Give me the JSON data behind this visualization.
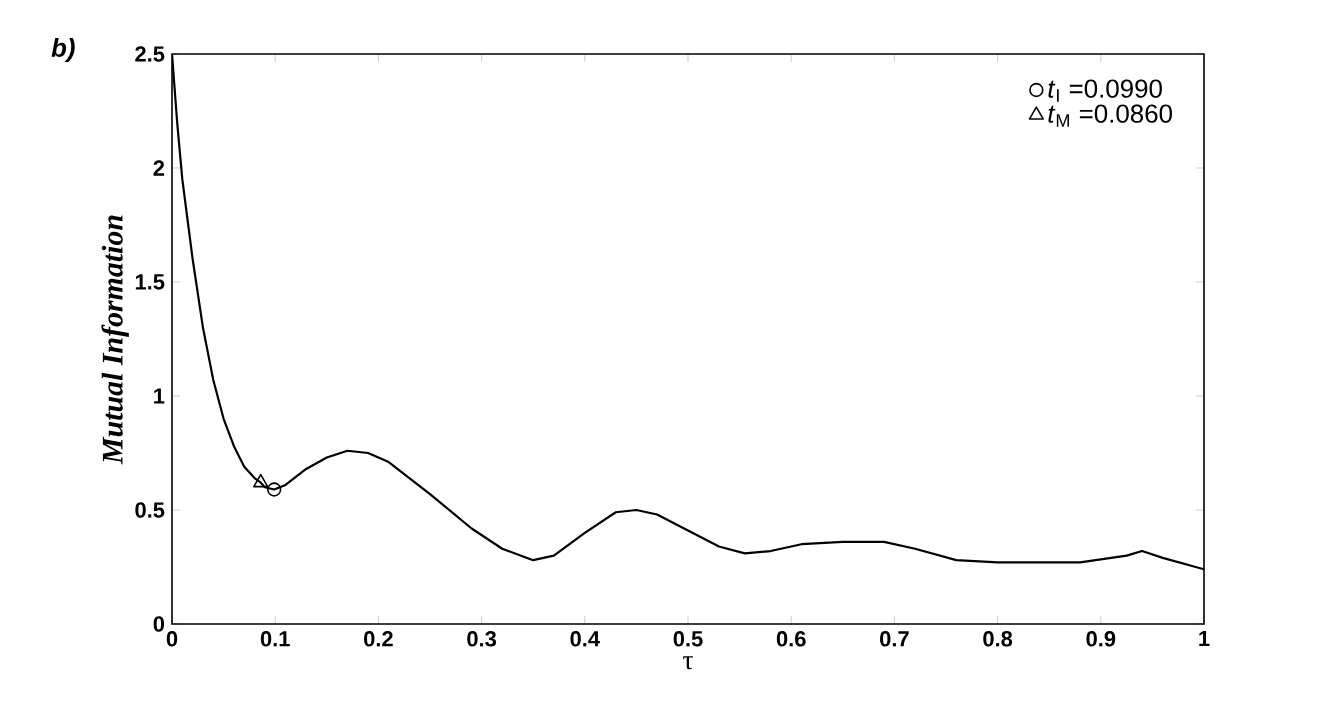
{
  "chart_data": {
    "type": "line",
    "xlabel": "τ",
    "ylabel": "Mutual Information",
    "annotations": [
      "b)"
    ],
    "xlim": [
      0,
      1
    ],
    "ylim": [
      0,
      2.5
    ],
    "xticks": [
      0,
      0.1,
      0.2,
      0.3,
      0.4,
      0.5,
      0.6,
      0.7,
      0.8,
      0.9,
      1
    ],
    "yticks": [
      0,
      0.5,
      1,
      1.5,
      2,
      2.5
    ],
    "legend": "top right",
    "grid": false,
    "series": [
      {
        "color": "#000000",
        "marker": "none",
        "x": [
          0,
          0.005,
          0.01,
          0.02,
          0.03,
          0.04,
          0.05,
          0.06,
          0.07,
          0.08,
          0.086,
          0.09,
          0.099,
          0.11,
          0.13,
          0.15,
          0.17,
          0.19,
          0.21,
          0.25,
          0.29,
          0.32,
          0.35,
          0.37,
          0.4,
          0.43,
          0.45,
          0.47,
          0.5,
          0.53,
          0.555,
          0.58,
          0.61,
          0.65,
          0.69,
          0.72,
          0.76,
          0.8,
          0.85,
          0.88,
          0.91,
          0.925,
          0.94,
          0.96,
          1.0
        ],
        "values": [
          2.5,
          2.2,
          1.95,
          1.6,
          1.3,
          1.07,
          0.9,
          0.78,
          0.69,
          0.64,
          0.62,
          0.6,
          0.59,
          0.61,
          0.68,
          0.73,
          0.76,
          0.75,
          0.71,
          0.57,
          0.42,
          0.33,
          0.28,
          0.3,
          0.4,
          0.49,
          0.5,
          0.48,
          0.41,
          0.34,
          0.31,
          0.32,
          0.35,
          0.36,
          0.36,
          0.33,
          0.28,
          0.27,
          0.27,
          0.27,
          0.29,
          0.3,
          0.32,
          0.29,
          0.24
        ]
      },
      {
        "type": "scatter",
        "name": "*t*$_{I}$ =0.0990",
        "color": "#000000",
        "marker": "circle",
        "x": [
          0.099
        ],
        "values": [
          0.59
        ]
      },
      {
        "type": "scatter",
        "name": "*t*$_{M}$ =0.0860",
        "color": "#000000",
        "marker": "triangle",
        "x": [
          0.086
        ],
        "values": [
          0.62
        ]
      }
    ]
  }
}
